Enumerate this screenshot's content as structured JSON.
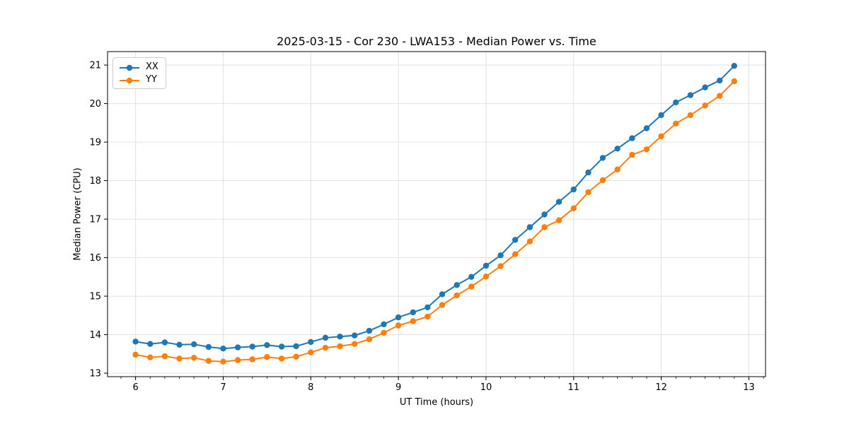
{
  "figure": {
    "title": "2025-03-15 - Cor 230 - LWA153 - Median Power vs. Time",
    "xlabel": "UT Time (hours)",
    "ylabel": "Median Power (CPU)",
    "background": "#ffffff"
  },
  "chart_data": {
    "type": "line",
    "title": "2025-03-15 - Cor 230 - LWA153 - Median Power vs. Time",
    "xlabel": "UT Time (hours)",
    "ylabel": "Median Power (CPU)",
    "legend_position": "upper left",
    "grid": true,
    "grid_color": "#e0e0e0",
    "spine_color": "#000000",
    "marker": "circle",
    "xlim": [
      5.68,
      13.19
    ],
    "ylim": [
      12.91,
      21.35
    ],
    "xticks": [
      6,
      7,
      8,
      9,
      10,
      11,
      12,
      13
    ],
    "yticks": [
      13,
      14,
      15,
      16,
      17,
      18,
      19,
      20,
      21
    ],
    "x_minor_tick_step": 0.166667,
    "x": [
      6,
      6.167,
      6.333,
      6.5,
      6.667,
      6.833,
      7,
      7.167,
      7.333,
      7.5,
      7.667,
      7.833,
      8,
      8.167,
      8.333,
      8.5,
      8.667,
      8.833,
      9,
      9.167,
      9.333,
      9.5,
      9.667,
      9.833,
      10,
      10.167,
      10.333,
      10.5,
      10.667,
      10.833,
      11,
      11.167,
      11.333,
      11.5,
      11.667,
      11.833,
      12,
      12.167,
      12.333,
      12.5,
      12.667,
      12.833
    ],
    "series": [
      {
        "name": "XX",
        "color": "#1f77b4",
        "values": [
          13.82,
          13.76,
          13.8,
          13.74,
          13.75,
          13.68,
          13.64,
          13.67,
          13.69,
          13.73,
          13.69,
          13.7,
          13.81,
          13.92,
          13.95,
          13.98,
          14.1,
          14.27,
          14.45,
          14.58,
          14.71,
          15.05,
          15.29,
          15.5,
          15.79,
          16.06,
          16.46,
          16.79,
          17.12,
          17.45,
          17.77,
          18.21,
          18.59,
          18.83,
          19.1,
          19.36,
          19.7,
          20.03,
          20.22,
          20.42,
          20.6,
          20.98
        ]
      },
      {
        "name": "YY",
        "color": "#ff7f0e",
        "values": [
          13.48,
          13.41,
          13.44,
          13.38,
          13.4,
          13.32,
          13.3,
          13.34,
          13.36,
          13.42,
          13.38,
          13.43,
          13.54,
          13.66,
          13.7,
          13.76,
          13.88,
          14.05,
          14.24,
          14.35,
          14.47,
          14.77,
          15.02,
          15.25,
          15.51,
          15.78,
          16.09,
          16.42,
          16.79,
          16.97,
          17.28,
          17.7,
          18.01,
          18.29,
          18.67,
          18.81,
          19.15,
          19.48,
          19.7,
          19.95,
          20.2,
          20.58
        ]
      }
    ]
  }
}
